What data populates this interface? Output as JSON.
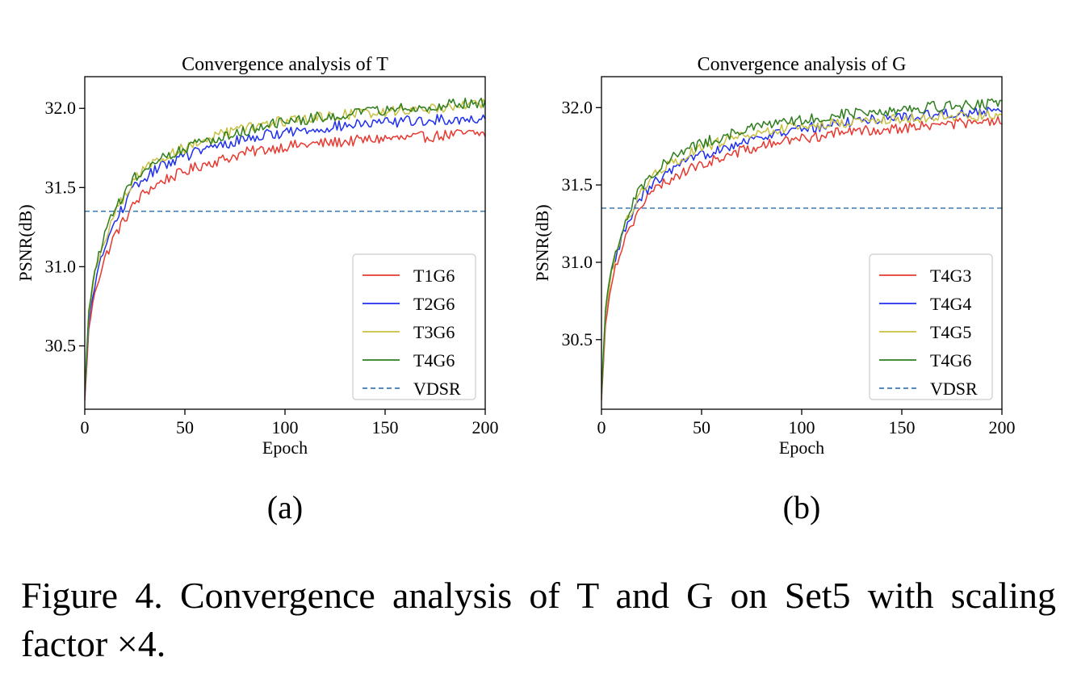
{
  "chart_data": [
    {
      "type": "line",
      "title": "Convergence analysis of T",
      "xlabel": "Epoch",
      "ylabel": "PSNR(dB)",
      "xlim": [
        0,
        200
      ],
      "ylim": [
        30.1,
        32.2
      ],
      "xticks": [
        0,
        50,
        100,
        150,
        200
      ],
      "yticks": [
        30.5,
        31.0,
        31.5,
        32.0
      ],
      "ytick_labels": [
        "30.5",
        "31.0",
        "31.5",
        "32.0"
      ],
      "grid": false,
      "legend_position": "lower-right",
      "x": [
        0,
        2,
        5,
        10,
        15,
        20,
        25,
        30,
        40,
        50,
        60,
        70,
        80,
        90,
        100,
        110,
        120,
        130,
        140,
        150,
        160,
        170,
        180,
        190,
        200
      ],
      "series": [
        {
          "name": "T1G6",
          "color": "#e8382f",
          "style": "solid",
          "noise": 0.035,
          "values": [
            30.15,
            30.6,
            30.85,
            31.05,
            31.2,
            31.3,
            31.4,
            31.47,
            31.55,
            31.6,
            31.65,
            31.68,
            31.72,
            31.74,
            31.76,
            31.77,
            31.78,
            31.79,
            31.8,
            31.81,
            31.81,
            31.82,
            31.83,
            31.84,
            31.84
          ]
        },
        {
          "name": "T2G6",
          "color": "#1f2ff0",
          "style": "solid",
          "noise": 0.035,
          "values": [
            30.18,
            30.65,
            30.9,
            31.12,
            31.28,
            31.4,
            31.5,
            31.56,
            31.65,
            31.7,
            31.74,
            31.77,
            31.81,
            31.83,
            31.85,
            31.86,
            31.88,
            31.89,
            31.9,
            31.91,
            31.92,
            31.92,
            31.93,
            31.93,
            31.94
          ]
        },
        {
          "name": "T3G6",
          "color": "#c8c040",
          "style": "solid",
          "noise": 0.035,
          "values": [
            30.2,
            30.7,
            30.95,
            31.18,
            31.33,
            31.45,
            31.55,
            31.62,
            31.7,
            31.75,
            31.8,
            31.84,
            31.87,
            31.9,
            31.92,
            31.93,
            31.95,
            31.96,
            31.97,
            31.98,
            31.99,
            32.0,
            32.01,
            32.02,
            32.03
          ]
        },
        {
          "name": "T4G6",
          "color": "#2e7d1e",
          "style": "solid",
          "noise": 0.035,
          "values": [
            30.2,
            30.72,
            30.98,
            31.2,
            31.36,
            31.47,
            31.56,
            31.62,
            31.7,
            31.75,
            31.79,
            31.83,
            31.86,
            31.89,
            31.91,
            31.93,
            31.95,
            31.96,
            31.97,
            31.99,
            32.0,
            32.01,
            32.02,
            32.03,
            32.04
          ]
        },
        {
          "name": "VDSR",
          "color": "#3a7ab8",
          "style": "dashed",
          "values": [
            31.35,
            31.35,
            31.35,
            31.35,
            31.35,
            31.35,
            31.35,
            31.35,
            31.35,
            31.35,
            31.35,
            31.35,
            31.35,
            31.35,
            31.35,
            31.35,
            31.35,
            31.35,
            31.35,
            31.35,
            31.35,
            31.35,
            31.35,
            31.35,
            31.35
          ]
        }
      ],
      "panel_label": "(a)"
    },
    {
      "type": "line",
      "title": "Convergence analysis of G",
      "xlabel": "Epoch",
      "ylabel": "PSNR(dB)",
      "xlim": [
        0,
        200
      ],
      "ylim": [
        30.05,
        32.2
      ],
      "xticks": [
        0,
        50,
        100,
        150,
        200
      ],
      "yticks": [
        30.5,
        31.0,
        31.5,
        32.0
      ],
      "ytick_labels": [
        "30.5",
        "31.0",
        "31.5",
        "32.0"
      ],
      "grid": false,
      "legend_position": "lower-right",
      "x": [
        0,
        2,
        5,
        10,
        15,
        20,
        25,
        30,
        40,
        50,
        60,
        70,
        80,
        90,
        100,
        110,
        120,
        130,
        140,
        150,
        160,
        170,
        180,
        190,
        200
      ],
      "series": [
        {
          "name": "T4G3",
          "color": "#e8382f",
          "style": "solid",
          "noise": 0.035,
          "values": [
            30.1,
            30.6,
            30.88,
            31.1,
            31.25,
            31.36,
            31.45,
            31.5,
            31.58,
            31.63,
            31.68,
            31.72,
            31.75,
            31.78,
            31.8,
            31.82,
            31.84,
            31.85,
            31.86,
            31.87,
            31.88,
            31.89,
            31.9,
            31.9,
            31.91
          ]
        },
        {
          "name": "T4G4",
          "color": "#1f2ff0",
          "style": "solid",
          "noise": 0.035,
          "values": [
            30.12,
            30.65,
            30.93,
            31.15,
            31.3,
            31.42,
            31.5,
            31.55,
            31.63,
            31.69,
            31.74,
            31.78,
            31.81,
            31.84,
            31.86,
            31.88,
            31.9,
            31.92,
            31.93,
            31.94,
            31.95,
            31.96,
            31.97,
            31.97,
            31.98
          ]
        },
        {
          "name": "T4G5",
          "color": "#c8c040",
          "style": "solid",
          "noise": 0.035,
          "values": [
            30.12,
            30.66,
            30.95,
            31.18,
            31.33,
            31.45,
            31.54,
            31.6,
            31.68,
            31.74,
            31.78,
            31.82,
            31.84,
            31.86,
            31.88,
            31.89,
            31.9,
            31.91,
            31.92,
            31.93,
            31.93,
            31.94,
            31.94,
            31.95,
            31.95
          ]
        },
        {
          "name": "T4G6",
          "color": "#2e7d1e",
          "style": "solid",
          "noise": 0.035,
          "values": [
            30.14,
            30.7,
            30.98,
            31.2,
            31.37,
            31.49,
            31.57,
            31.63,
            31.71,
            31.77,
            31.81,
            31.85,
            31.88,
            31.9,
            31.92,
            31.94,
            31.96,
            31.97,
            31.98,
            31.99,
            32.0,
            32.01,
            32.02,
            32.02,
            32.03
          ]
        },
        {
          "name": "VDSR",
          "color": "#3a7ab8",
          "style": "dashed",
          "values": [
            31.35,
            31.35,
            31.35,
            31.35,
            31.35,
            31.35,
            31.35,
            31.35,
            31.35,
            31.35,
            31.35,
            31.35,
            31.35,
            31.35,
            31.35,
            31.35,
            31.35,
            31.35,
            31.35,
            31.35,
            31.35,
            31.35,
            31.35,
            31.35,
            31.35
          ]
        }
      ],
      "panel_label": "(b)"
    }
  ],
  "caption": "Figure 4. Convergence analysis of T and G on Set5 with scaling factor ×4."
}
